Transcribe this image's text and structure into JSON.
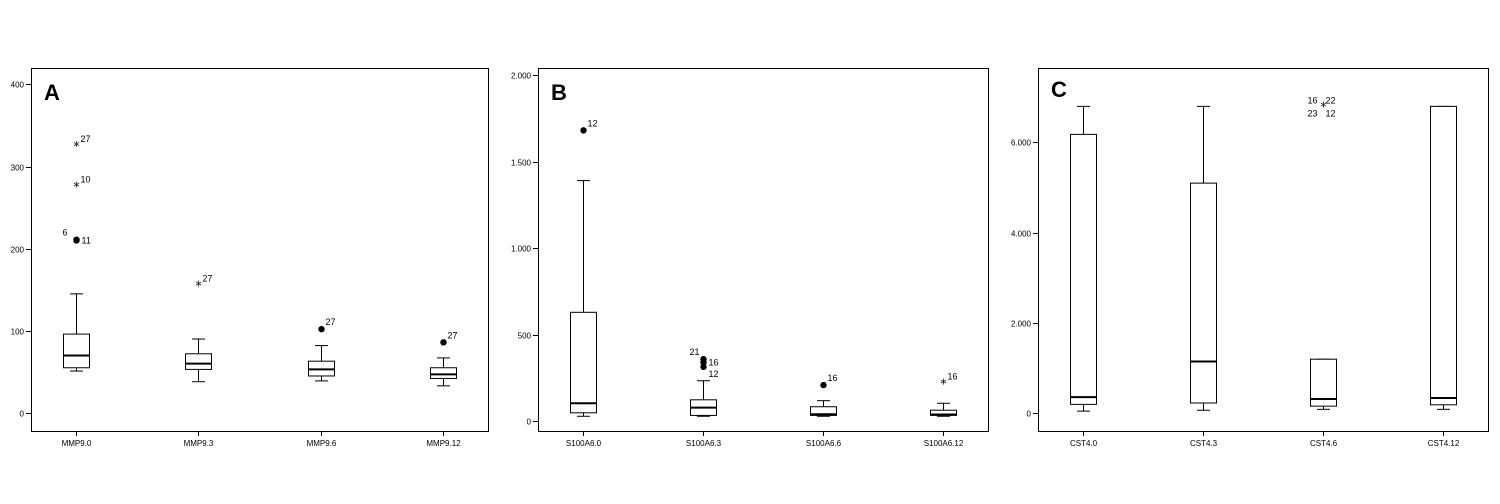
{
  "chart_data": [
    {
      "type": "box",
      "panel_label": "A",
      "ylim": [
        -22,
        420
      ],
      "y_ticks": [
        {
          "value": 0,
          "label": "0"
        },
        {
          "value": 100,
          "label": "100"
        },
        {
          "value": 200,
          "label": "200"
        },
        {
          "value": 300,
          "label": "300"
        },
        {
          "value": 400,
          "label": "400"
        }
      ],
      "grid": false,
      "boxes": [
        {
          "category": "MMP9.0",
          "whisker_low": 51,
          "q1": 55,
          "median": 70,
          "q3": 96,
          "whisker_high": 145,
          "outliers": [
            {
              "value": 211,
              "marker": "circle",
              "label": "6"
            },
            {
              "value": 210,
              "marker": "circle",
              "label": "11"
            },
            {
              "value": 276,
              "marker": "star",
              "label": "10"
            },
            {
              "value": 325,
              "marker": "star",
              "label": "27"
            }
          ]
        },
        {
          "category": "MMP9.3",
          "whisker_low": 38,
          "q1": 53,
          "median": 60,
          "q3": 72,
          "whisker_high": 90,
          "outliers": [
            {
              "value": 155,
              "marker": "star",
              "label": "27"
            }
          ]
        },
        {
          "category": "MMP9.6",
          "whisker_low": 39,
          "q1": 45,
          "median": 53,
          "q3": 63,
          "whisker_high": 82,
          "outliers": [
            {
              "value": 102,
              "marker": "circle",
              "label": "27"
            }
          ]
        },
        {
          "category": "MMP9.12",
          "whisker_low": 33,
          "q1": 42,
          "median": 47,
          "q3": 55,
          "whisker_high": 67,
          "outliers": [
            {
              "value": 86,
              "marker": "circle",
              "label": "27"
            }
          ]
        }
      ]
    },
    {
      "type": "box",
      "panel_label": "B",
      "ylim": [
        -55,
        2040
      ],
      "y_ticks": [
        {
          "value": 0,
          "label": "0"
        },
        {
          "value": 500,
          "label": "500"
        },
        {
          "value": 1000,
          "label": "1.000"
        },
        {
          "value": 1500,
          "label": "1.500"
        },
        {
          "value": 2000,
          "label": "2.000"
        }
      ],
      "grid": false,
      "boxes": [
        {
          "category": "S100A6.0",
          "whisker_low": 30,
          "q1": 50,
          "median": 105,
          "q3": 630,
          "whisker_high": 1390,
          "outliers": [
            {
              "value": 1680,
              "marker": "circle",
              "label": "12"
            }
          ]
        },
        {
          "category": "S100A6.3",
          "whisker_low": 30,
          "q1": 35,
          "median": 80,
          "q3": 125,
          "whisker_high": 235,
          "outliers": [
            {
              "value": 360,
              "marker": "circle",
              "label": "21"
            },
            {
              "value": 340,
              "marker": "circle",
              "label": "16"
            },
            {
              "value": 315,
              "marker": "circle",
              "label": "12"
            }
          ]
        },
        {
          "category": "S100A6.6",
          "whisker_low": 30,
          "q1": 35,
          "median": 42,
          "q3": 85,
          "whisker_high": 120,
          "outliers": [
            {
              "value": 210,
              "marker": "circle",
              "label": "16"
            }
          ]
        },
        {
          "category": "S100A6.12",
          "whisker_low": 30,
          "q1": 35,
          "median": 40,
          "q3": 65,
          "whisker_high": 105,
          "outliers": [
            {
              "value": 220,
              "marker": "star",
              "label": "16"
            }
          ]
        }
      ]
    },
    {
      "type": "box",
      "panel_label": "C",
      "ylim": [
        -390,
        7650
      ],
      "y_ticks": [
        {
          "value": 0,
          "label": "0"
        },
        {
          "value": 2000,
          "label": "2.000"
        },
        {
          "value": 4000,
          "label": "4.000"
        },
        {
          "value": 6000,
          "label": "6.000"
        }
      ],
      "grid": false,
      "boxes": [
        {
          "category": "CST4.0",
          "whisker_low": 50,
          "q1": 200,
          "median": 360,
          "q3": 6180,
          "whisker_high": 6800,
          "outliers": []
        },
        {
          "category": "CST4.3",
          "whisker_low": 70,
          "q1": 230,
          "median": 1150,
          "q3": 5100,
          "whisker_high": 6800,
          "outliers": []
        },
        {
          "category": "CST4.6",
          "whisker_low": 90,
          "q1": 160,
          "median": 320,
          "q3": 1200,
          "whisker_high": 1200,
          "outliers": [
            {
              "value": 6800,
              "marker": "star",
              "labels": [
                "16",
                "22",
                "23",
                "12"
              ]
            }
          ]
        },
        {
          "category": "CST4.12",
          "whisker_low": 90,
          "q1": 190,
          "median": 340,
          "q3": 6800,
          "whisker_high": 6800,
          "outliers": []
        }
      ]
    }
  ]
}
